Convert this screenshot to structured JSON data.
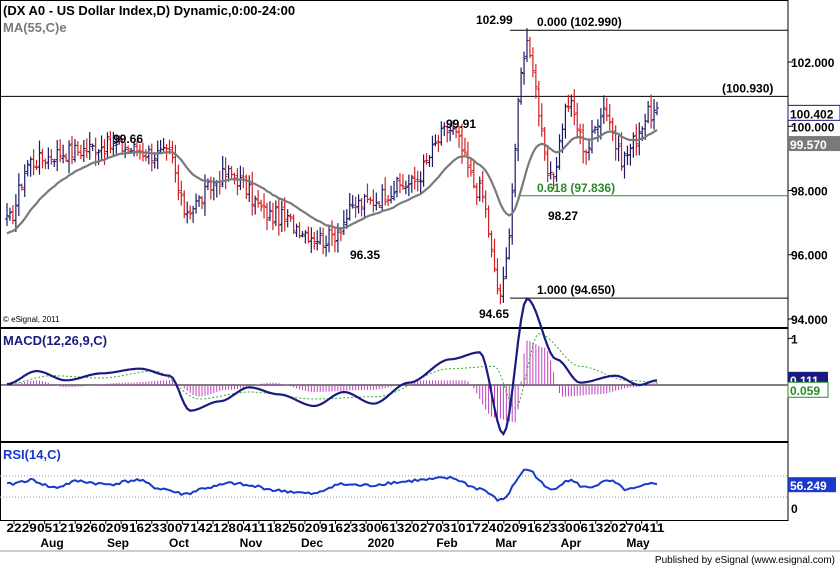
{
  "header": {
    "price_title": "(DX A0 - US Dollar Index,D) Dynamic,0:00-24:00",
    "ma_title": "MA(55,C)e",
    "macd_title": "MACD(12,26,9,C)",
    "rsi_title": "RSI(14,C)",
    "copyright": "© eSignal, 2011",
    "footer": "Published by eSignal (www.esignal.com)"
  },
  "colors": {
    "up_bar": "#1a1a66",
    "down_bar": "#d42020",
    "ma_line": "#7a7a7a",
    "macd_line": "#1a1a80",
    "signal_line": "#3aaa3a",
    "histogram": "#c040c0",
    "rsi_line": "#1a3acc",
    "fib_line": "#2a8a2a",
    "current_box": "#1a1a80",
    "ma_box": "#7a7a7a",
    "macd_box_green": "#2a8a2a",
    "rsi_box": "#1a3acc"
  },
  "chart_data": [
    {
      "type": "candlestick",
      "panel": "price",
      "title": "(DX A0 - US Dollar Index,D) Dynamic,0:00-24:00",
      "ylim": [
        93.75,
        103.9
      ],
      "y_ticks": [
        "94.000",
        "96.000",
        "98.000",
        "100.000",
        "102.000"
      ],
      "x_day_labels": [
        "22",
        "29",
        "05",
        "12",
        "19",
        "26",
        "02",
        "09",
        "16",
        "23",
        "30",
        "07",
        "14",
        "21",
        "28",
        "04",
        "11",
        "18",
        "25",
        "02",
        "09",
        "16",
        "23",
        "30",
        "06",
        "13",
        "20",
        "27",
        "03",
        "10",
        "17",
        "24",
        "02",
        "09",
        "16",
        "23",
        "30",
        "06",
        "13",
        "20",
        "27",
        "04",
        "11"
      ],
      "x_month_labels": [
        "Aug",
        "Sep",
        "Oct",
        "Nov",
        "Dec",
        "2020",
        "Feb",
        "Mar",
        "Apr",
        "May"
      ],
      "current_value": "100.402",
      "ma_value": "99.570",
      "ma_label": "MA(55,C)e",
      "annotations": [
        {
          "text": "99.66",
          "value": 99.66,
          "kind": "high"
        },
        {
          "text": "96.35",
          "value": 96.35,
          "kind": "low"
        },
        {
          "text": "99.91",
          "value": 99.91,
          "kind": "high"
        },
        {
          "text": "94.65",
          "value": 94.65,
          "kind": "low"
        },
        {
          "text": "102.99",
          "value": 102.99,
          "kind": "high"
        },
        {
          "text": "98.27",
          "value": 98.27,
          "kind": "low"
        }
      ],
      "fib_levels": [
        {
          "label": "0.000 (102.990)",
          "value": 102.99
        },
        {
          "label": "0.618 (97.836)",
          "value": 97.836
        },
        {
          "label": "1.000 (94.650)",
          "value": 94.65
        }
      ],
      "horizontal_lines": [
        {
          "label": "(100.930)",
          "value": 100.93
        }
      ],
      "key_points": [
        {
          "idx": 0,
          "close": 97.0
        },
        {
          "idx": 8,
          "close": 98.9
        },
        {
          "idx": 20,
          "close": 99.2
        },
        {
          "idx": 34,
          "close": 99.4
        },
        {
          "idx": 55,
          "close": 99.1
        },
        {
          "idx": 60,
          "close": 97.4
        },
        {
          "idx": 75,
          "close": 98.5
        },
        {
          "idx": 90,
          "close": 97.2
        },
        {
          "idx": 108,
          "close": 96.5
        },
        {
          "idx": 120,
          "close": 97.6
        },
        {
          "idx": 136,
          "close": 98.2
        },
        {
          "idx": 150,
          "close": 99.9
        },
        {
          "idx": 160,
          "close": 98.0
        },
        {
          "idx": 167,
          "close": 94.8
        },
        {
          "idx": 176,
          "close": 102.6
        },
        {
          "idx": 184,
          "close": 98.3
        },
        {
          "idx": 190,
          "close": 100.7
        },
        {
          "idx": 196,
          "close": 99.3
        },
        {
          "idx": 202,
          "close": 100.6
        },
        {
          "idx": 208,
          "close": 99.0
        },
        {
          "idx": 218,
          "close": 100.4
        }
      ]
    },
    {
      "type": "line",
      "panel": "macd",
      "title": "MACD(12,26,9,C)",
      "ylim": [
        -1.2,
        1.2
      ],
      "y_ticks": [
        "1"
      ],
      "current_values": [
        "0.111",
        "0.059"
      ],
      "series": [
        {
          "name": "MACD",
          "points": [
            [
              0,
              0.02
            ],
            [
              10,
              0.3
            ],
            [
              20,
              0.1
            ],
            [
              32,
              0.25
            ],
            [
              45,
              0.35
            ],
            [
              55,
              0.2
            ],
            [
              62,
              -0.55
            ],
            [
              72,
              -0.35
            ],
            [
              82,
              -0.05
            ],
            [
              92,
              -0.2
            ],
            [
              104,
              -0.45
            ],
            [
              114,
              -0.15
            ],
            [
              124,
              -0.4
            ],
            [
              136,
              0.05
            ],
            [
              150,
              0.55
            ],
            [
              160,
              0.7
            ],
            [
              168,
              -1.05
            ],
            [
              176,
              1.85
            ],
            [
              186,
              0.55
            ],
            [
              194,
              0.05
            ],
            [
              206,
              0.2
            ],
            [
              214,
              0.0
            ],
            [
              220,
              0.1
            ]
          ]
        },
        {
          "name": "Signal",
          "points": [
            [
              0,
              0.02
            ],
            [
              15,
              0.2
            ],
            [
              32,
              0.15
            ],
            [
              50,
              0.3
            ],
            [
              65,
              -0.3
            ],
            [
              82,
              -0.15
            ],
            [
              104,
              -0.3
            ],
            [
              125,
              -0.25
            ],
            [
              150,
              0.35
            ],
            [
              165,
              0.4
            ],
            [
              172,
              -0.5
            ],
            [
              180,
              1.1
            ],
            [
              194,
              0.4
            ],
            [
              210,
              0.1
            ],
            [
              220,
              0.06
            ]
          ]
        },
        {
          "name": "Histogram",
          "points": [
            [
              0,
              0.0
            ],
            [
              10,
              0.1
            ],
            [
              20,
              -0.05
            ],
            [
              40,
              0.05
            ],
            [
              55,
              0.1
            ],
            [
              65,
              -0.25
            ],
            [
              75,
              -0.1
            ],
            [
              90,
              0.05
            ],
            [
              104,
              -0.15
            ],
            [
              124,
              -0.1
            ],
            [
              140,
              0.1
            ],
            [
              155,
              0.1
            ],
            [
              165,
              -0.7
            ],
            [
              172,
              -0.8
            ],
            [
              176,
              0.95
            ],
            [
              182,
              0.8
            ],
            [
              188,
              -0.25
            ],
            [
              200,
              -0.2
            ],
            [
              212,
              -0.05
            ],
            [
              220,
              0.05
            ]
          ]
        }
      ]
    },
    {
      "type": "line",
      "panel": "rsi",
      "title": "RSI(14,C)",
      "ylim": [
        0,
        100
      ],
      "y_ticks": [
        "0"
      ],
      "current_value": "56.249",
      "series": [
        {
          "name": "RSI",
          "points": [
            [
              0,
              54
            ],
            [
              8,
              62
            ],
            [
              16,
              48
            ],
            [
              24,
              60
            ],
            [
              34,
              54
            ],
            [
              44,
              62
            ],
            [
              52,
              46
            ],
            [
              60,
              36
            ],
            [
              68,
              48
            ],
            [
              76,
              56
            ],
            [
              84,
              50
            ],
            [
              92,
              42
            ],
            [
              104,
              36
            ],
            [
              112,
              54
            ],
            [
              122,
              52
            ],
            [
              132,
              58
            ],
            [
              140,
              62
            ],
            [
              150,
              66
            ],
            [
              160,
              46
            ],
            [
              167,
              24
            ],
            [
              176,
              82
            ],
            [
              184,
              44
            ],
            [
              190,
              62
            ],
            [
              196,
              48
            ],
            [
              204,
              60
            ],
            [
              210,
              44
            ],
            [
              220,
              56
            ]
          ]
        }
      ]
    }
  ]
}
